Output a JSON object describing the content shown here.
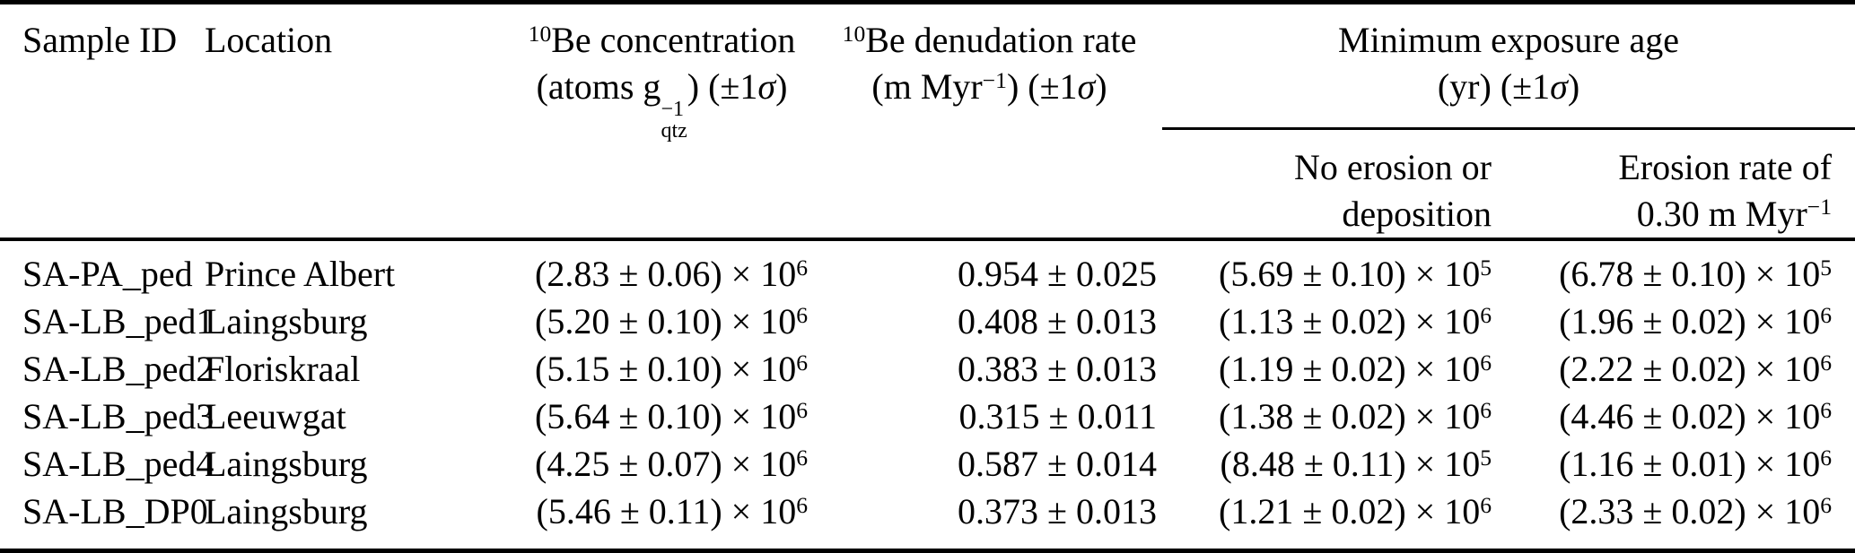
{
  "table": {
    "colors": {
      "text": "#000000",
      "background": "#ffffff",
      "rule": "#000000"
    },
    "header": {
      "sample_id": "Sample ID",
      "location": "Location",
      "concentration": {
        "line1": "^{10}Be concentration",
        "line2": "(atoms g~{−1|qtz}) (±1σ)"
      },
      "denudation": {
        "line1": "^{10}Be denudation rate",
        "line2": "(m Myr^{−1}) (±1σ)"
      },
      "exposure_group": {
        "line1": "Minimum exposure age",
        "line2": "(yr) (±1σ)"
      },
      "sub_no_erosion": {
        "line1": "No erosion or",
        "line2": "deposition"
      },
      "sub_erosion_rate": {
        "line1": "Erosion rate of",
        "line2": "0.30 m Myr^{−1}"
      }
    },
    "rows": [
      {
        "id": "SA-PA_ped",
        "location": "Prince Albert",
        "conc": "(2.83 ± 0.06) × 10^{6}",
        "rate": "0.954 ± 0.025",
        "age_no": "(5.69 ± 0.10) × 10^{5}",
        "age_er": "(6.78 ± 0.10) × 10^{5}"
      },
      {
        "id": "SA-LB_ped1",
        "location": "Laingsburg",
        "conc": "(5.20 ± 0.10) × 10^{6}",
        "rate": "0.408 ± 0.013",
        "age_no": "(1.13 ± 0.02) × 10^{6}",
        "age_er": "(1.96 ± 0.02) × 10^{6}"
      },
      {
        "id": "SA-LB_ped2",
        "location": "Floriskraal",
        "conc": "(5.15 ± 0.10) × 10^{6}",
        "rate": "0.383 ± 0.013",
        "age_no": "(1.19 ± 0.02) × 10^{6}",
        "age_er": "(2.22 ± 0.02) × 10^{6}"
      },
      {
        "id": "SA-LB_ped3",
        "location": "Leeuwgat",
        "conc": "(5.64 ± 0.10) × 10^{6}",
        "rate": "0.315 ± 0.011",
        "age_no": "(1.38 ± 0.02) × 10^{6}",
        "age_er": "(4.46 ± 0.02) × 10^{6}"
      },
      {
        "id": "SA-LB_ped4",
        "location": "Laingsburg",
        "conc": "(4.25 ± 0.07) × 10^{6}",
        "rate": "0.587 ± 0.014",
        "age_no": "(8.48 ± 0.11) × 10^{5}",
        "age_er": "(1.16 ± 0.01) × 10^{6}"
      },
      {
        "id": "SA-LB_DP0",
        "location": "Laingsburg",
        "conc": "(5.46 ± 0.11) × 10^{6}",
        "rate": "0.373 ± 0.013",
        "age_no": "(1.21 ± 0.02) × 10^{6}",
        "age_er": "(2.33 ± 0.02) × 10^{6}"
      }
    ]
  }
}
